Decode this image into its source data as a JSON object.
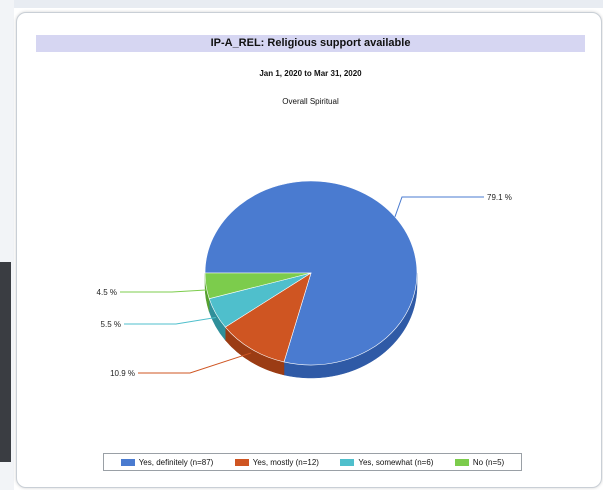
{
  "chart_data": {
    "type": "pie",
    "title": "IP-A_REL: Religious support available",
    "date_range": "Jan 1, 2020 to Mar 31, 2020",
    "subtitle": "Overall Spiritual",
    "slices": [
      {
        "legend": "Yes, definitely (n=87)",
        "value": 79.1,
        "label": "79.1 %",
        "color": "#4a7bd0",
        "side": "#2f5aa6"
      },
      {
        "legend": "Yes, mostly (n=12)",
        "value": 10.9,
        "label": "10.9 %",
        "color": "#cf5522",
        "side": "#9b3c14"
      },
      {
        "legend": "Yes, somewhat (n=6)",
        "value": 5.5,
        "label": "5.5 %",
        "color": "#4fbfcc",
        "side": "#2f8f9a"
      },
      {
        "legend": "No (n=5)",
        "value": 4.5,
        "label": "4.5 %",
        "color": "#7ccc4c",
        "side": "#56a02e"
      }
    ],
    "legend_position": "bottom"
  }
}
